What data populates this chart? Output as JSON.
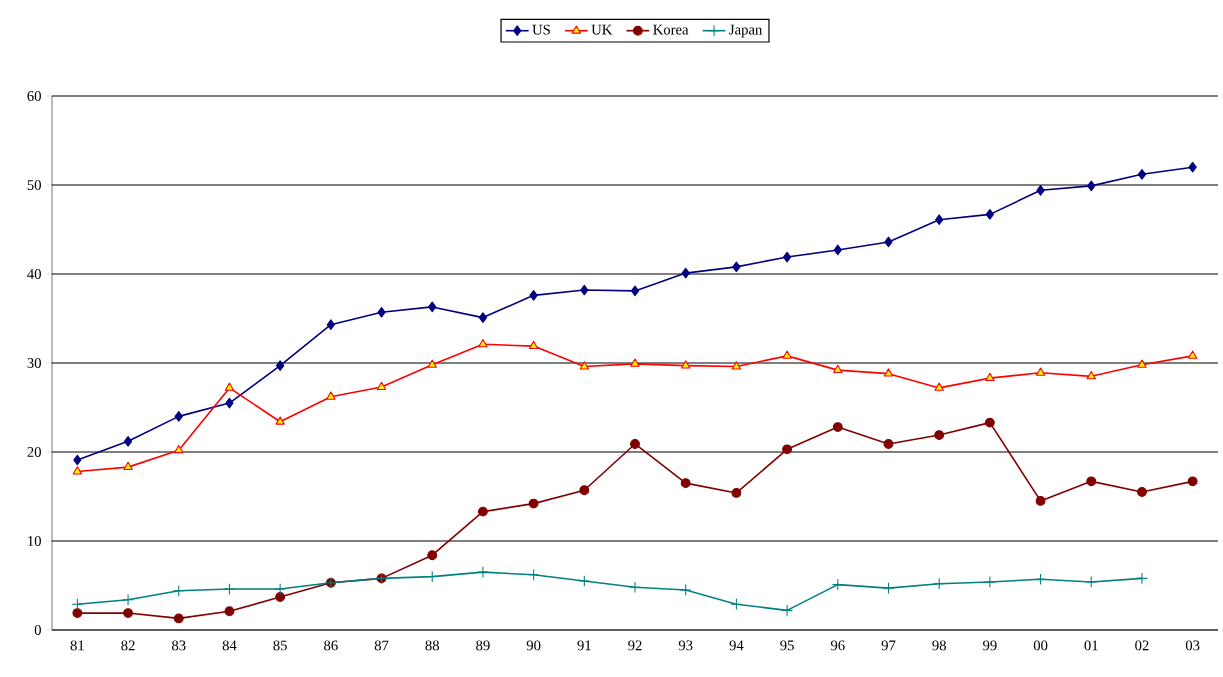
{
  "chart_data": {
    "type": "line",
    "categories": [
      "81",
      "82",
      "83",
      "84",
      "85",
      "86",
      "87",
      "88",
      "89",
      "90",
      "91",
      "92",
      "93",
      "94",
      "95",
      "96",
      "97",
      "98",
      "99",
      "00",
      "01",
      "02",
      "03"
    ],
    "series": [
      {
        "name": "US",
        "color": "#000080",
        "marker": "diamond",
        "values": [
          19.1,
          21.2,
          24.0,
          25.5,
          29.7,
          34.3,
          35.7,
          36.3,
          35.1,
          37.6,
          38.2,
          38.1,
          40.1,
          40.8,
          41.9,
          42.7,
          43.6,
          46.1,
          46.7,
          49.4,
          49.9,
          51.2,
          52.0
        ]
      },
      {
        "name": "UK",
        "color": "#ff0000",
        "marker": "triangle",
        "values": [
          17.8,
          18.3,
          20.2,
          27.2,
          23.4,
          26.2,
          27.3,
          29.8,
          32.1,
          31.9,
          29.6,
          29.9,
          29.7,
          29.6,
          30.8,
          29.2,
          28.8,
          27.2,
          28.3,
          28.9,
          28.5,
          29.8,
          30.8
        ]
      },
      {
        "name": "Korea",
        "color": "#800000",
        "marker": "circle",
        "values": [
          1.9,
          1.9,
          1.3,
          2.1,
          3.7,
          5.3,
          5.8,
          8.4,
          13.3,
          14.2,
          15.7,
          20.9,
          16.5,
          15.4,
          20.3,
          22.8,
          20.9,
          21.9,
          23.3,
          14.5,
          16.7,
          15.5,
          16.7
        ]
      },
      {
        "name": "Japan",
        "color": "#008080",
        "marker": "cross",
        "values": [
          2.9,
          3.4,
          4.4,
          4.6,
          4.6,
          5.3,
          5.8,
          6.0,
          6.5,
          6.2,
          5.5,
          4.8,
          4.5,
          2.9,
          2.2,
          5.1,
          4.7,
          5.2,
          5.4,
          5.7,
          5.4,
          5.8,
          null
        ]
      }
    ],
    "ylim": [
      0,
      60
    ],
    "yticks": [
      0,
      10,
      20,
      30,
      40,
      50,
      60
    ],
    "grid": "y",
    "legend": "top"
  }
}
